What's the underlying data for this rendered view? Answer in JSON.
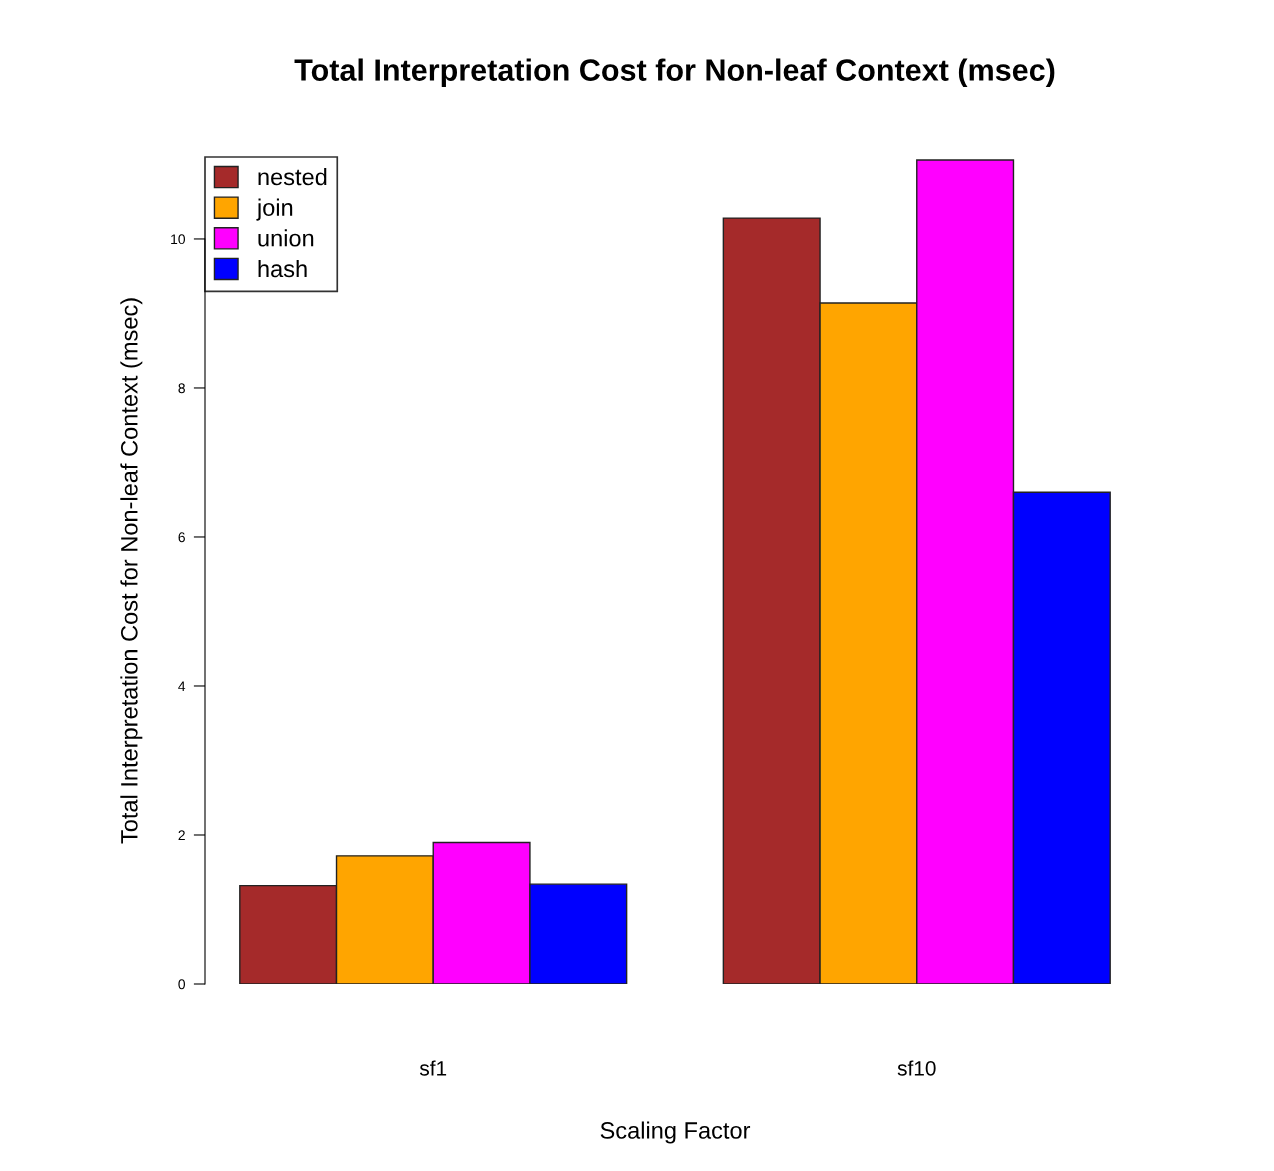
{
  "chart_data": {
    "type": "bar",
    "title": "Total Interpretation Cost for Non-leaf Context (msec)",
    "xlabel": "Scaling Factor",
    "ylabel": "Total Interpretation Cost for Non-leaf Context (msec)",
    "categories": [
      "sf1",
      "sf10"
    ],
    "series": [
      {
        "name": "nested",
        "color": "#a52a2a",
        "values": [
          1.32,
          10.28
        ]
      },
      {
        "name": "join",
        "color": "#ffa500",
        "values": [
          1.72,
          9.14
        ]
      },
      {
        "name": "union",
        "color": "#ff00ff",
        "values": [
          1.9,
          11.06
        ]
      },
      {
        "name": "hash",
        "color": "#0000ff",
        "values": [
          1.34,
          6.6
        ]
      }
    ],
    "ylim": [
      0,
      11.1
    ],
    "yticks": [
      0,
      2,
      4,
      6,
      8,
      10
    ],
    "grid": false,
    "legend": "top left"
  }
}
